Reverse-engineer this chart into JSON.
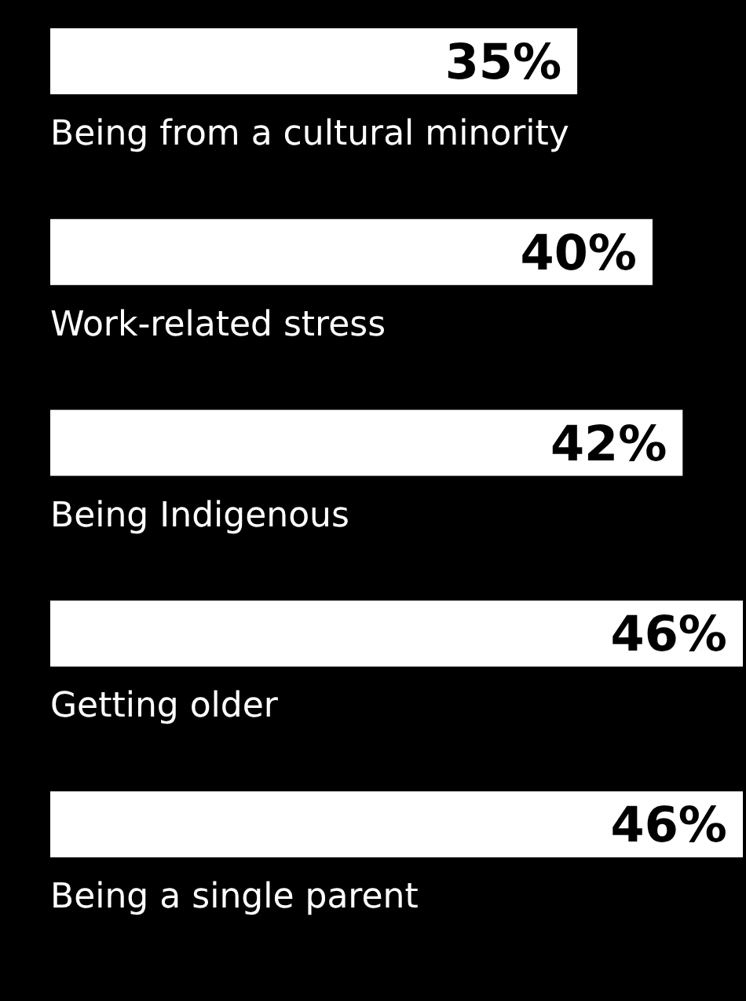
{
  "chart_data": {
    "type": "bar",
    "orientation": "horizontal",
    "categories": [
      "Being from a cultural minority",
      "Work-related stress",
      "Being Indigenous",
      "Getting older",
      "Being a single parent"
    ],
    "values": [
      35,
      40,
      42,
      46,
      46
    ],
    "value_labels": [
      "35%",
      "40%",
      "42%",
      "46%",
      "46%"
    ],
    "color": "#ffffff",
    "grid": false,
    "legend": false
  }
}
